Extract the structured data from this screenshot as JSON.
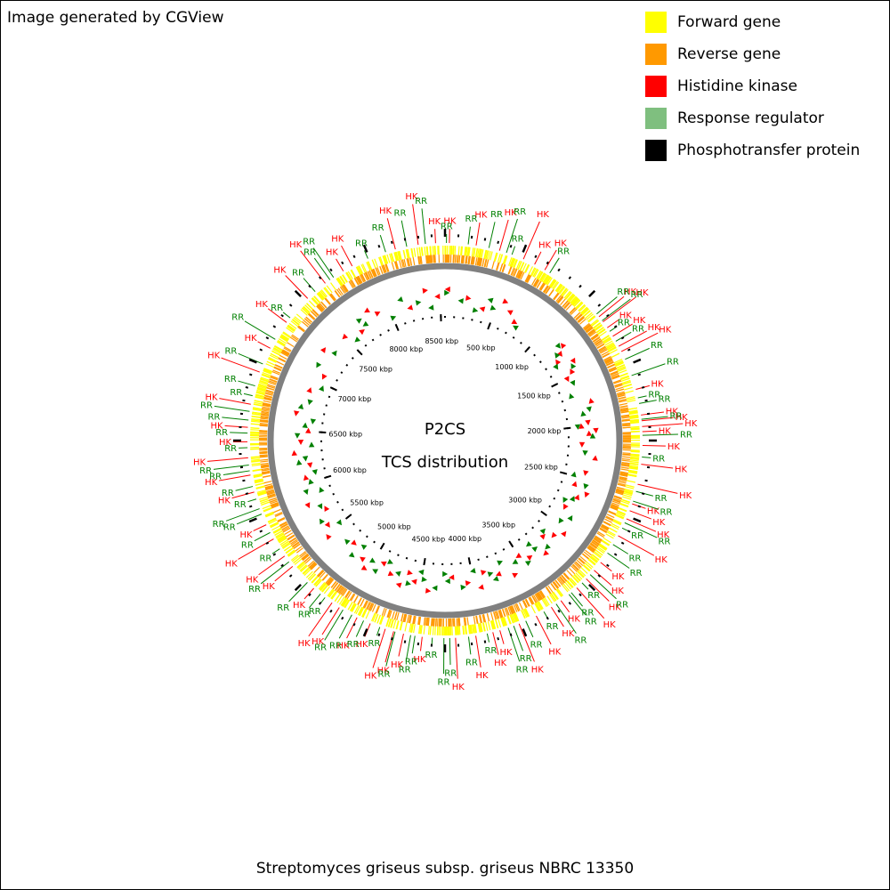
{
  "credit": "Image generated by CGView",
  "caption": "Streptomyces griseus subsp. griseus NBRC 13350",
  "center": {
    "line1": "P2CS",
    "line2": "TCS distribution"
  },
  "legend": [
    {
      "label": "Forward gene",
      "color": "#ffff00"
    },
    {
      "label": "Reverse gene",
      "color": "#ff9900"
    },
    {
      "label": "Histidine kinase",
      "color": "#ff0000"
    },
    {
      "label": "Response regulator",
      "color": "#7fbf7f"
    },
    {
      "label": "Phosphotransfer protein",
      "color": "#000000"
    }
  ],
  "colors": {
    "forward": "#ffff00",
    "reverse": "#ff9900",
    "hk": "#ff0000",
    "rr": "#008000",
    "backbone": "#808080",
    "tick": "#000000"
  },
  "genome": {
    "length_kbp": 8545,
    "tick_labels": [
      "500 kbp",
      "1000 kbp",
      "1500 kbp",
      "2000 kbp",
      "2500 kbp",
      "3000 kbp",
      "3500 kbp",
      "4000 kbp",
      "4500 kbp",
      "5000 kbp",
      "5500 kbp",
      "6000 kbp",
      "6500 kbp",
      "7000 kbp",
      "7500 kbp",
      "8000 kbp",
      "8500 kbp"
    ],
    "tick_kbp": [
      500,
      1000,
      1500,
      2000,
      2500,
      3000,
      3500,
      4000,
      4500,
      5000,
      5500,
      6000,
      6500,
      7000,
      7500,
      8000,
      8500
    ]
  },
  "callouts": {
    "hk_label": "HK",
    "rr_label": "RR",
    "hk_kbp": [
      30,
      215,
      380,
      555,
      640,
      720,
      1215,
      1260,
      1310,
      1380,
      1460,
      1500,
      1780,
      1960,
      2000,
      2040,
      2075,
      2170,
      2300,
      2440,
      2580,
      2630,
      2690,
      2820,
      3040,
      3110,
      3190,
      3280,
      3420,
      3500,
      3620,
      3750,
      3890,
      3940,
      4060,
      4200,
      4430,
      4560,
      4630,
      4690,
      4800,
      4900,
      5040,
      5100,
      5260,
      5470,
      5560,
      5700,
      5810,
      6050,
      6170,
      6290,
      6400,
      6500,
      6660,
      6890,
      7070,
      7280,
      7500,
      7660,
      7810,
      7880,
      8200,
      8360,
      8480
    ],
    "rr_kbp": [
      10,
      160,
      305,
      430,
      470,
      760,
      1190,
      1250,
      1340,
      1420,
      1560,
      1680,
      1840,
      1880,
      1990,
      2100,
      2250,
      2490,
      2560,
      2720,
      2760,
      2890,
      2960,
      3150,
      3230,
      3330,
      3350,
      3460,
      3560,
      3700,
      3790,
      3830,
      3980,
      4110,
      4240,
      4280,
      4360,
      4480,
      4510,
      4620,
      4730,
      4850,
      4940,
      5010,
      5160,
      5200,
      5320,
      5510,
      5620,
      5750,
      5890,
      5930,
      6000,
      6090,
      6200,
      6240,
      6360,
      6460,
      6550,
      6610,
      6720,
      6790,
      6950,
      7140,
      7320,
      7570,
      7700,
      7730,
      8000,
      8130,
      8280,
      8410
    ]
  }
}
